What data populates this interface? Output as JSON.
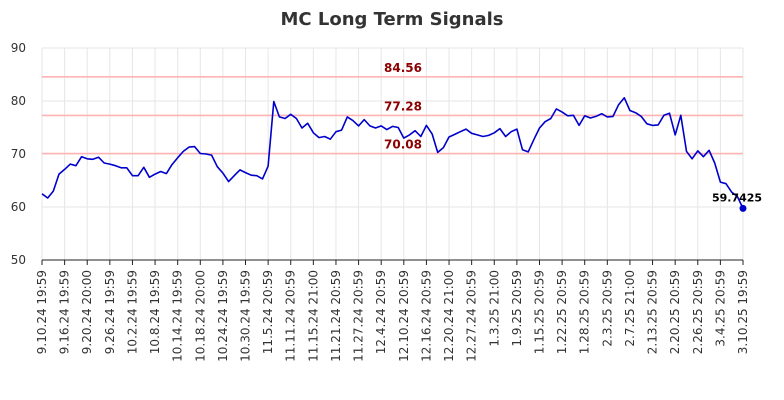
{
  "chart_data": {
    "type": "line",
    "title": "MC Long Term Signals",
    "xlabel": "",
    "ylabel": "",
    "ylim": [
      50,
      90
    ],
    "yticks": [
      50,
      60,
      70,
      80,
      90
    ],
    "grid": true,
    "line_color": "#0000cc",
    "ref_line_color": "#ffb3b3",
    "ref_label_color": "#8b0000",
    "x_tick_labels": [
      "9.10.24 19:59",
      "9.16.24 19:59",
      "9.20.24 20:00",
      "9.26.24 19:59",
      "10.2.24 19:59",
      "10.8.24 19:59",
      "10.14.24 19:59",
      "10.18.24 20:00",
      "10.24.24 19:59",
      "10.30.24 19:59",
      "11.5.24 20:59",
      "11.11.24 20:59",
      "11.15.24 21:00",
      "11.21.24 20:59",
      "11.27.24 20:59",
      "12.4.24 20:59",
      "12.10.24 20:59",
      "12.16.24 20:59",
      "12.20.24 21:00",
      "12.27.24 20:59",
      "1.3.25 21:00",
      "1.9.25 20:59",
      "1.15.25 20:59",
      "1.22.25 20:59",
      "1.28.25 20:59",
      "2.3.25 20:59",
      "2.7.25 21:00",
      "2.13.25 20:59",
      "2.20.25 20:59",
      "2.26.25 20:59",
      "3.4.25 20:59",
      "3.10.25 19:59"
    ],
    "reference_lines": [
      {
        "value": 84.56,
        "label": "84.56"
      },
      {
        "value": 77.28,
        "label": "77.28"
      },
      {
        "value": 70.08,
        "label": "70.08"
      }
    ],
    "last_value_label": "59.7425",
    "values": [
      62.5,
      61.7,
      63.0,
      66.2,
      67.1,
      68.1,
      67.8,
      69.5,
      69.1,
      69.0,
      69.4,
      68.3,
      68.1,
      67.8,
      67.4,
      67.4,
      65.9,
      65.9,
      67.5,
      65.6,
      66.2,
      66.7,
      66.3,
      68.0,
      69.3,
      70.5,
      71.3,
      71.4,
      70.1,
      70.0,
      69.8,
      67.6,
      66.4,
      64.8,
      65.9,
      67.0,
      66.5,
      66.0,
      65.9,
      65.3,
      67.7,
      79.9,
      77.0,
      76.7,
      77.5,
      76.7,
      74.9,
      75.8,
      74.0,
      73.1,
      73.3,
      72.8,
      74.2,
      74.5,
      77.0,
      76.3,
      75.3,
      76.5,
      75.3,
      74.9,
      75.3,
      74.6,
      75.2,
      75.0,
      73.0,
      73.6,
      74.4,
      73.3,
      75.4,
      73.8,
      70.3,
      71.2,
      73.2,
      73.7,
      74.2,
      74.7,
      73.9,
      73.6,
      73.3,
      73.5,
      74.0,
      74.8,
      73.3,
      74.2,
      74.7,
      70.8,
      70.4,
      72.7,
      74.9,
      76.1,
      76.7,
      78.5,
      77.9,
      77.2,
      77.3,
      75.4,
      77.2,
      76.8,
      77.1,
      77.6,
      77.0,
      77.1,
      79.3,
      80.6,
      78.2,
      77.8,
      77.1,
      75.7,
      75.4,
      75.5,
      77.3,
      77.7,
      73.6,
      77.3,
      70.5,
      69.1,
      70.6,
      69.5,
      70.7,
      68.3,
      64.7,
      64.4,
      62.8,
      62.0,
      59.7425
    ]
  }
}
